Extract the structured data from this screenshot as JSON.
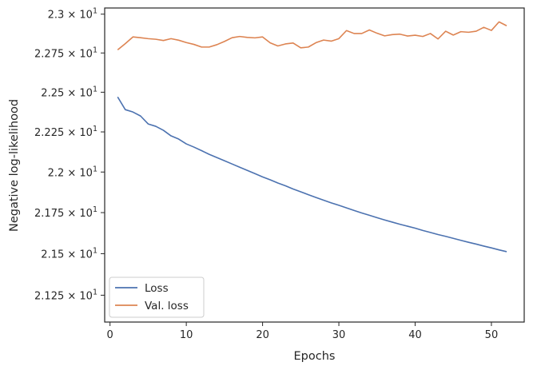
{
  "chart_data": {
    "type": "line",
    "title": "",
    "xlabel": "Epochs",
    "ylabel": "Negative log-likelihood",
    "xlim": [
      -0.7,
      54.3
    ],
    "ylim": [
      21.09,
      23.04
    ],
    "yscale": "log",
    "grid": false,
    "legend_position": "lower-left",
    "x_ticks": [
      0,
      10,
      20,
      30,
      40,
      50
    ],
    "x_tick_labels": [
      "0",
      "10",
      "20",
      "30",
      "40",
      "50"
    ],
    "y_ticks": [
      21.25,
      21.5,
      21.75,
      22.0,
      22.25,
      22.5,
      22.75,
      23.0
    ],
    "y_tick_labels": [
      {
        "mantissa": "2.125",
        "exp": "1"
      },
      {
        "mantissa": "2.15",
        "exp": "1"
      },
      {
        "mantissa": "2.175",
        "exp": "1"
      },
      {
        "mantissa": "2.2",
        "exp": "1"
      },
      {
        "mantissa": "2.225",
        "exp": "1"
      },
      {
        "mantissa": "2.25",
        "exp": "1"
      },
      {
        "mantissa": "2.275",
        "exp": "1"
      },
      {
        "mantissa": "2.3",
        "exp": "1"
      }
    ],
    "x": [
      1,
      2,
      3,
      4,
      5,
      6,
      7,
      8,
      9,
      10,
      11,
      12,
      13,
      14,
      15,
      16,
      17,
      18,
      19,
      20,
      21,
      22,
      23,
      24,
      25,
      26,
      27,
      28,
      29,
      30,
      31,
      32,
      33,
      34,
      35,
      36,
      37,
      38,
      39,
      40,
      41,
      42,
      43,
      44,
      45,
      46,
      47,
      48,
      49,
      50,
      51,
      52
    ],
    "series": [
      {
        "name": "Loss",
        "color": "#4c72b0",
        "values": [
          22.47,
          22.39,
          22.375,
          22.35,
          22.3,
          22.285,
          22.26,
          22.225,
          22.205,
          22.175,
          22.155,
          22.133,
          22.11,
          22.09,
          22.07,
          22.05,
          22.03,
          22.01,
          21.99,
          21.97,
          21.952,
          21.932,
          21.915,
          21.895,
          21.878,
          21.86,
          21.843,
          21.826,
          21.81,
          21.795,
          21.779,
          21.763,
          21.748,
          21.734,
          21.719,
          21.705,
          21.692,
          21.679,
          21.667,
          21.655,
          21.641,
          21.629,
          21.616,
          21.605,
          21.593,
          21.581,
          21.569,
          21.558,
          21.546,
          21.535,
          21.523,
          21.512
        ]
      },
      {
        "name": "Val. loss",
        "color": "#dd8452",
        "values": [
          22.77,
          22.81,
          22.853,
          22.848,
          22.842,
          22.838,
          22.83,
          22.842,
          22.832,
          22.817,
          22.805,
          22.788,
          22.788,
          22.803,
          22.824,
          22.848,
          22.856,
          22.85,
          22.847,
          22.853,
          22.815,
          22.795,
          22.808,
          22.814,
          22.783,
          22.788,
          22.816,
          22.833,
          22.826,
          22.842,
          22.894,
          22.875,
          22.875,
          22.898,
          22.877,
          22.86,
          22.868,
          22.871,
          22.859,
          22.864,
          22.856,
          22.875,
          22.84,
          22.89,
          22.865,
          22.887,
          22.883,
          22.89,
          22.915,
          22.895,
          22.95,
          22.925
        ]
      }
    ]
  }
}
